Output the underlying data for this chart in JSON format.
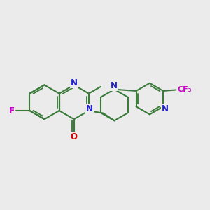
{
  "bg_color": "#ebebeb",
  "bond_color": "#3a7a3a",
  "bond_width": 1.5,
  "N_color": "#2222cc",
  "O_color": "#cc0000",
  "F_color": "#cc00cc",
  "label_fontsize": 8.5,
  "figsize": [
    3.0,
    3.0
  ],
  "dpi": 100,
  "xlim": [
    0,
    10
  ],
  "ylim": [
    0,
    10
  ]
}
